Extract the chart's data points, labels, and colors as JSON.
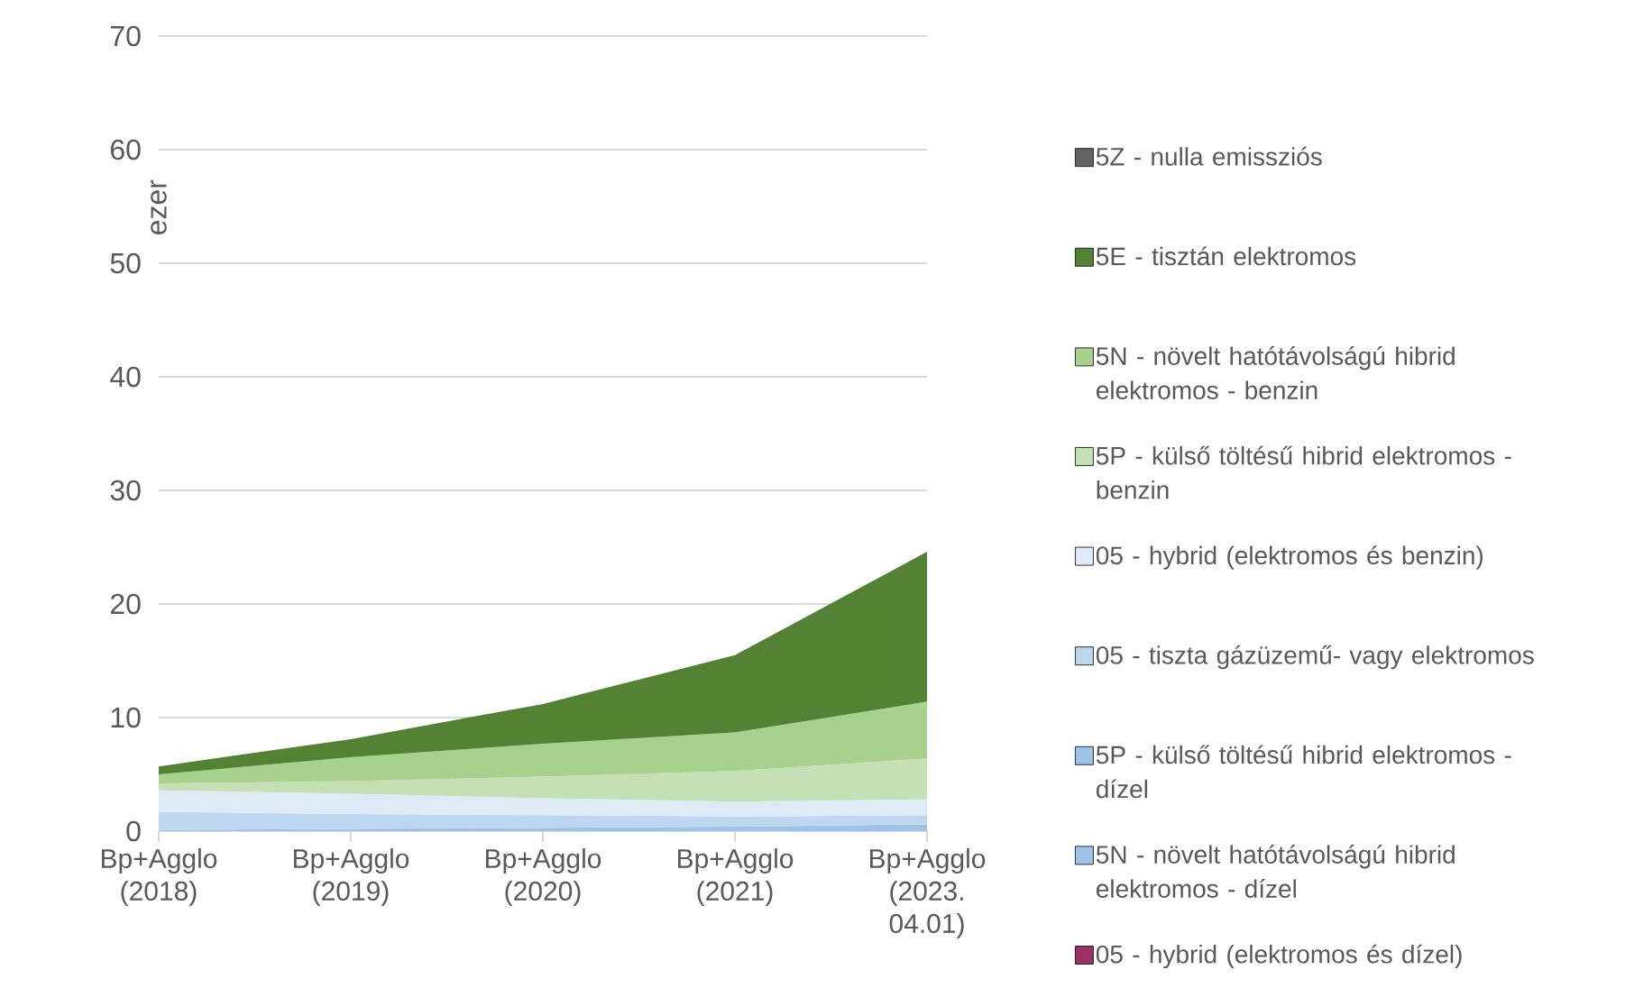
{
  "chart_data": {
    "type": "area",
    "stacked": true,
    "ylabel": "ezer",
    "categories": [
      "Bp+Agglo (2018)",
      "Bp+Agglo (2019)",
      "Bp+Agglo (2020)",
      "Bp+Agglo (2021)",
      "Bp+Agglo (2023. 04.01)"
    ],
    "series": [
      {
        "name": "05 - hybrid (elektromos és dízel)",
        "color": "#993366",
        "values": [
          null,
          null,
          null,
          null,
          null
        ]
      },
      {
        "name": "5N - növelt hatótávolságú hibrid elektromos - dízel",
        "color": "#9dc3e6",
        "values": [
          null,
          null,
          null,
          null,
          null
        ]
      },
      {
        "name": "5P - külső töltésű hibrid elektromos - dízel",
        "color": "#9dc3e6",
        "values": [
          0.1,
          0.2,
          0.3,
          0.4,
          0.6
        ]
      },
      {
        "name": "05 - tiszta gázüzemű- vagy elektromos",
        "color": "#bdd7ee",
        "values": [
          1.6,
          1.3,
          1.1,
          0.9,
          0.8
        ]
      },
      {
        "name": "05 - hybrid (elektromos és benzin)",
        "color": "#deebf7",
        "values": [
          1.9,
          1.8,
          1.5,
          1.3,
          1.4
        ]
      },
      {
        "name": "5P - külső töltésű hibrid elektromos - benzin",
        "color": "#c5e0b4",
        "values": [
          0.6,
          1.1,
          1.9,
          2.7,
          3.6
        ]
      },
      {
        "name": "5N - növelt hatótávolságú hibrid elektromos - benzin",
        "color": "#a9d18e",
        "values": [
          0.8,
          2.1,
          2.9,
          3.4,
          5.0
        ]
      },
      {
        "name": "5E - tisztán elektromos",
        "color": "#548235",
        "values": [
          0.7,
          1.6,
          3.5,
          6.8,
          13.2
        ]
      },
      {
        "name": "5Z - nulla emissziós",
        "color": "#636363",
        "values": [
          null,
          null,
          null,
          null,
          null
        ]
      }
    ],
    "ylim": [
      0,
      70
    ],
    "yticks": [
      0,
      10,
      20,
      30,
      40,
      50,
      60,
      70
    ],
    "grid": "y",
    "legend": "right"
  }
}
